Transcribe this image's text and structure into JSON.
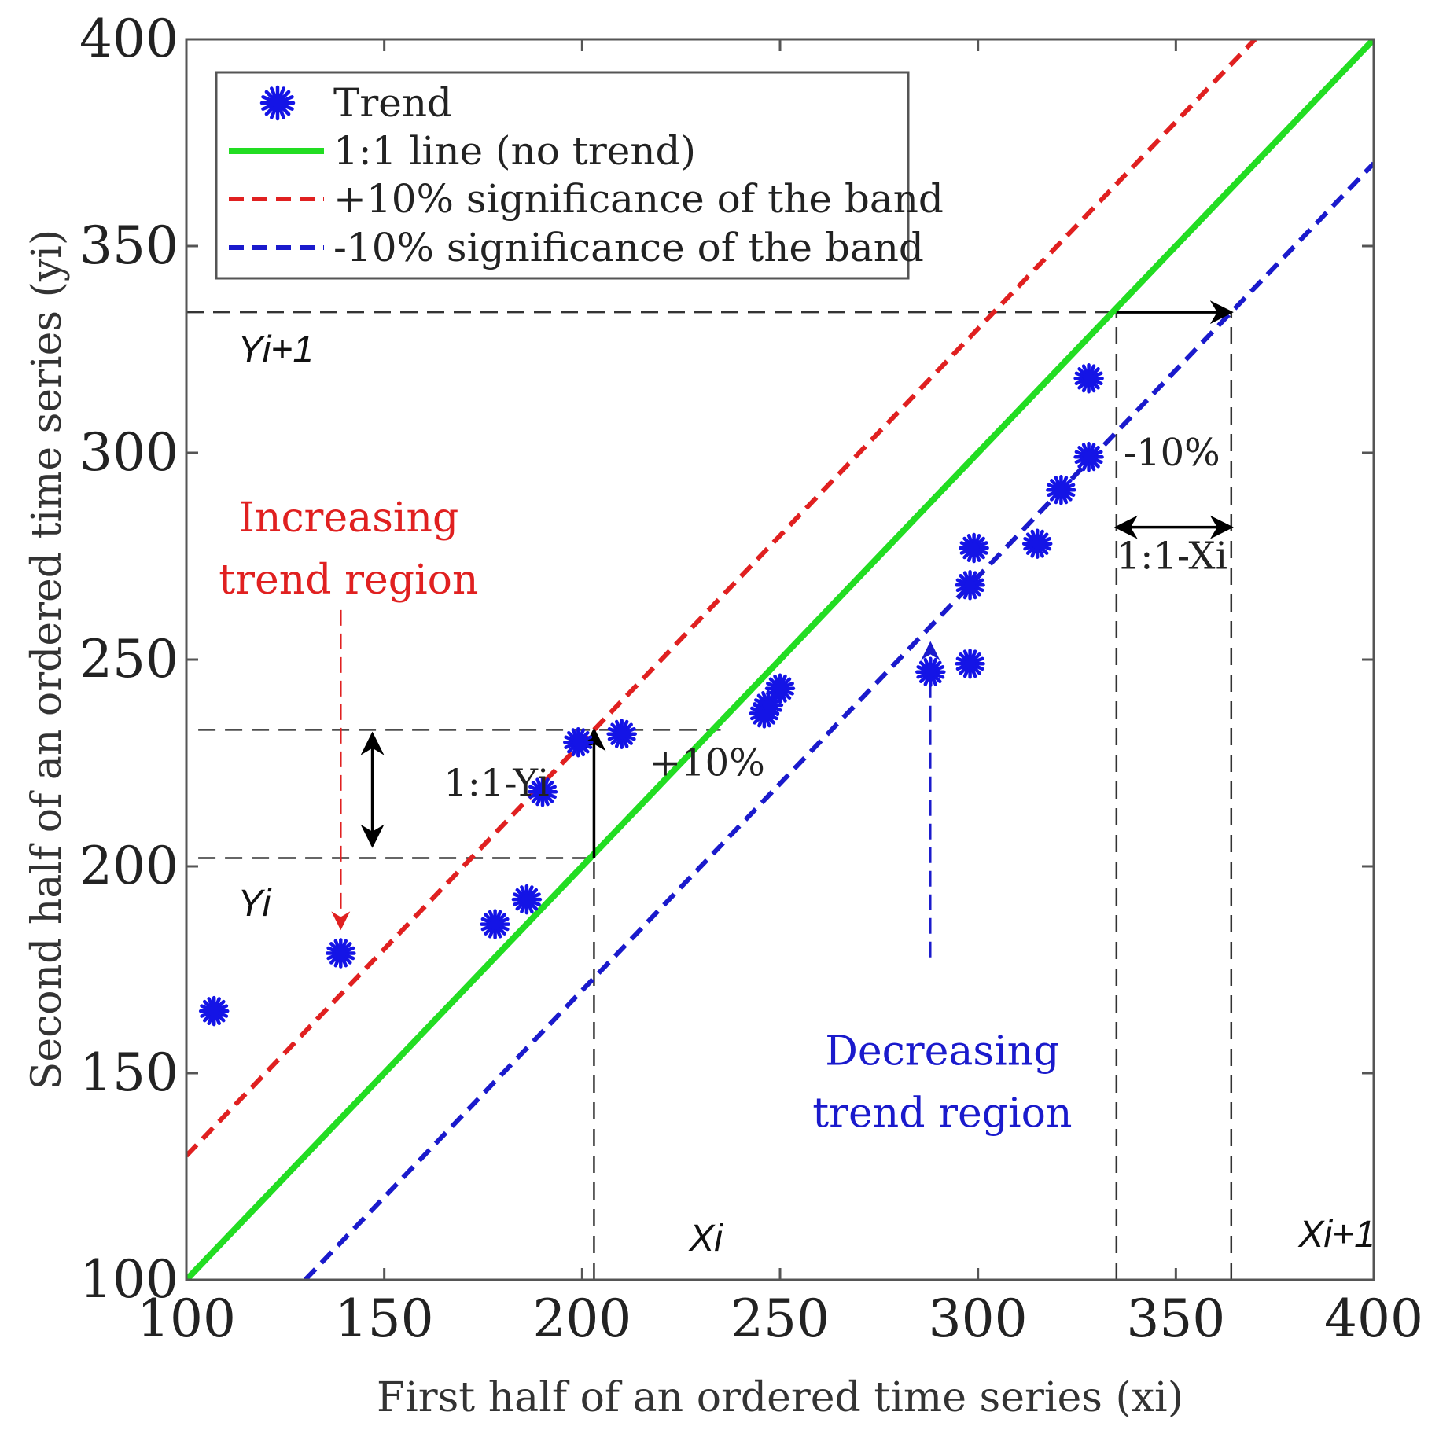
{
  "chart_data": {
    "type": "scatter",
    "title": "",
    "xlabel": "First half of an ordered time series (xi)",
    "ylabel": "Second half of an ordered time series (yi)",
    "xlim": [
      100,
      400
    ],
    "ylim": [
      100,
      400
    ],
    "xticks": [
      100,
      150,
      200,
      250,
      300,
      350,
      400
    ],
    "yticks": [
      100,
      150,
      200,
      250,
      300,
      350,
      400
    ],
    "xtick_labels": [
      "100",
      "150",
      "200",
      "250",
      "300",
      "350",
      "400"
    ],
    "ytick_labels": [
      "100",
      "150",
      "200",
      "250",
      "300",
      "350",
      "400"
    ],
    "grid": false,
    "legend_position": "top-left",
    "series": [
      {
        "name": "Trend",
        "kind": "markers",
        "marker": "asterisk",
        "color": "#1414e6",
        "x": [
          107,
          139,
          178,
          186,
          190,
          199,
          210,
          246,
          247,
          250,
          288,
          298,
          298,
          299,
          315,
          321,
          328,
          328
        ],
        "y": [
          165,
          179,
          186,
          192,
          218,
          230,
          232,
          237,
          239,
          243,
          247,
          249,
          268,
          277,
          278,
          291,
          299,
          318
        ]
      },
      {
        "name": "1:1 line (no trend)",
        "kind": "line",
        "style": "solid",
        "color": "#22dd22",
        "x": [
          100,
          400
        ],
        "y": [
          100,
          400
        ]
      },
      {
        "name": "+10% significance of the band",
        "kind": "line",
        "style": "dashed",
        "color": "#e02020",
        "x": [
          100,
          370
        ],
        "y": [
          130,
          400
        ]
      },
      {
        "name": "-10% significance of the band",
        "kind": "line",
        "style": "dashed",
        "color": "#1a1acc",
        "x": [
          130,
          400
        ],
        "y": [
          100,
          370
        ]
      }
    ],
    "guides": [
      {
        "id": "yi1-h",
        "x": [
          100,
          364
        ],
        "y": [
          334,
          334
        ]
      },
      {
        "id": "xi1-v",
        "x": [
          335,
          335
        ],
        "y": [
          100,
          334
        ]
      },
      {
        "id": "xi2-v",
        "x": [
          364,
          364
        ],
        "y": [
          100,
          334
        ]
      },
      {
        "id": "yi-upper-h",
        "x": [
          103,
          235
        ],
        "y": [
          233,
          233
        ]
      },
      {
        "id": "yi-lower-h",
        "x": [
          103,
          203
        ],
        "y": [
          202,
          202
        ]
      },
      {
        "id": "xi-v",
        "x": [
          203,
          203
        ],
        "y": [
          100,
          202
        ]
      }
    ],
    "arrows": [
      {
        "id": "arrow-minus10",
        "color": "#000000",
        "heads": "end",
        "x": [
          335,
          364
        ],
        "y": [
          334,
          334
        ]
      },
      {
        "id": "arrow-1-1-xi",
        "color": "#000000",
        "heads": "both",
        "x": [
          335,
          364
        ],
        "y": [
          282,
          282
        ]
      },
      {
        "id": "arrow-1-1-yi",
        "color": "#000000",
        "heads": "both",
        "x": [
          147,
          147
        ],
        "y": [
          232,
          205
        ]
      },
      {
        "id": "arrow-plus10",
        "color": "#000000",
        "heads": "end",
        "x": [
          203,
          203
        ],
        "y": [
          202,
          233
        ]
      },
      {
        "id": "arrow-increasing",
        "color": "#e02020",
        "dashed": true,
        "heads": "end",
        "x": [
          139,
          139
        ],
        "y": [
          262,
          185
        ]
      },
      {
        "id": "arrow-decreasing",
        "color": "#1a1acc",
        "dashed": true,
        "heads": "end",
        "x": [
          288,
          288
        ],
        "y": [
          178,
          254
        ]
      }
    ],
    "annotations": [
      {
        "id": "label-yi1",
        "text": "Yi+1",
        "x": 113,
        "y": 322,
        "style": "italic",
        "font": "sans",
        "color": "#111111"
      },
      {
        "id": "label-yi",
        "text": "Yi",
        "x": 113,
        "y": 188,
        "style": "italic",
        "font": "sans",
        "color": "#111111"
      },
      {
        "id": "label-xi",
        "text": "Xi",
        "x": 227,
        "y": 107,
        "style": "italic",
        "font": "sans",
        "color": "#111111"
      },
      {
        "id": "label-xi1",
        "text": "Xi+1",
        "x": 381,
        "y": 108,
        "style": "italic",
        "font": "sans",
        "color": "#111111"
      },
      {
        "id": "label-minus10",
        "text": "-10%",
        "x": 349,
        "y": 297,
        "style": "normal",
        "font": "serif",
        "color": "#222222"
      },
      {
        "id": "label-1-1-xi",
        "text": "1:1-Xi",
        "x": 349,
        "y": 272,
        "style": "normal",
        "font": "serif",
        "color": "#222222"
      },
      {
        "id": "label-1-1-yi",
        "text": "1:1-Yi",
        "x": 165,
        "y": 217,
        "style": "normal",
        "font": "serif",
        "color": "#222222"
      },
      {
        "id": "label-plus10",
        "text": "+10%",
        "x": 217,
        "y": 222,
        "style": "normal",
        "font": "serif",
        "color": "#222222"
      },
      {
        "id": "label-increasing-1",
        "text": "Increasing",
        "x": 141,
        "y": 281,
        "style": "normal",
        "font": "serif",
        "color": "#e02020"
      },
      {
        "id": "label-increasing-2",
        "text": "trend region",
        "x": 141,
        "y": 266,
        "style": "normal",
        "font": "serif",
        "color": "#e02020"
      },
      {
        "id": "label-decreasing-1",
        "text": "Decreasing",
        "x": 291,
        "y": 152,
        "style": "normal",
        "font": "serif",
        "color": "#1a1acc"
      },
      {
        "id": "label-decreasing-2",
        "text": "trend region",
        "x": 291,
        "y": 137,
        "style": "normal",
        "font": "serif",
        "color": "#1a1acc"
      }
    ]
  }
}
